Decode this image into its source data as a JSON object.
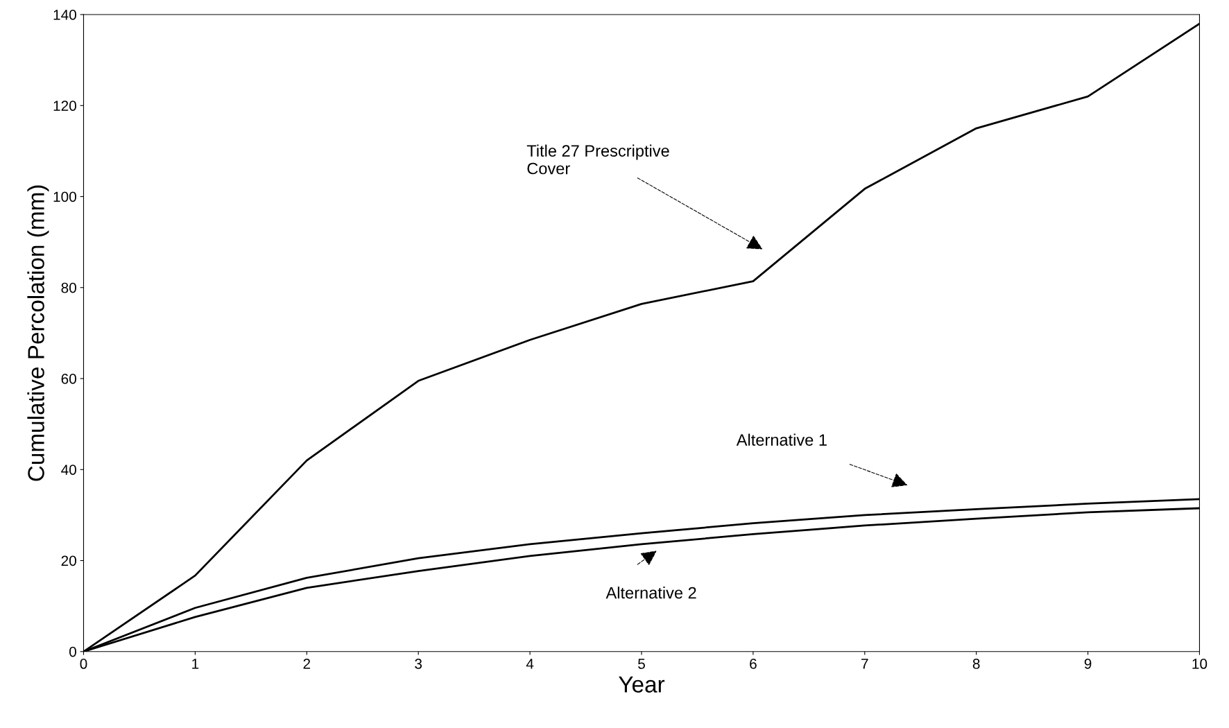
{
  "chart_data": {
    "type": "line",
    "xlabel": "Year",
    "ylabel": "Cumulative Percolation (mm)",
    "x": [
      0,
      1,
      2,
      3,
      4,
      5,
      6,
      7,
      8,
      9,
      10
    ],
    "series": [
      {
        "color": "#000000",
        "values": [
          0,
          16.7,
          42,
          59.5,
          68.5,
          76.4,
          81.4,
          101.7,
          115,
          122,
          138
        ]
      },
      {
        "color": "#000000",
        "values": [
          0,
          9.6,
          16.2,
          20.5,
          23.6,
          26,
          28.2,
          30,
          31.3,
          32.5,
          33.5
        ]
      },
      {
        "color": "#000000",
        "values": [
          0,
          7.6,
          14,
          17.7,
          21,
          23.6,
          25.8,
          27.7,
          29.2,
          30.6,
          31.5
        ]
      }
    ],
    "xlim": [
      0,
      10
    ],
    "ylim": [
      0,
      140
    ],
    "xticks": [
      0,
      1,
      2,
      3,
      4,
      5,
      6,
      7,
      8,
      9,
      10
    ],
    "yticks": [
      0,
      20,
      40,
      60,
      80,
      100,
      120,
      140
    ],
    "annotations": [
      "Title 27 Prescriptive\nCover",
      "Alternative 1",
      "Alternative 2"
    ],
    "grid": false,
    "legend": false,
    "marker": "none",
    "line_style": "solid"
  }
}
